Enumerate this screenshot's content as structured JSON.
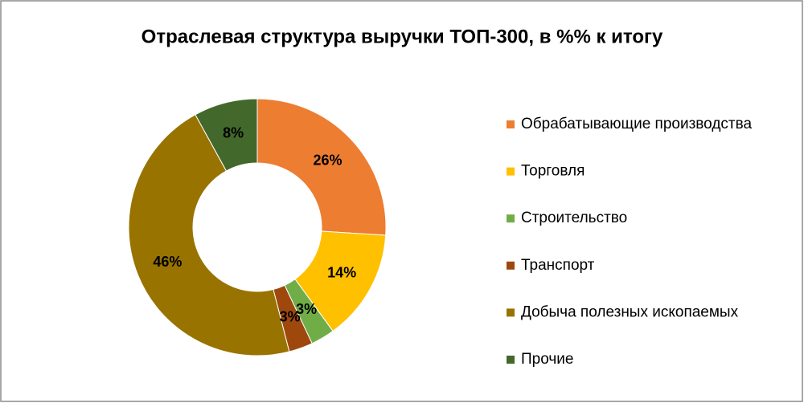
{
  "chart_data": {
    "type": "donut",
    "title": "Отраслевая структура выручки ТОП-300, в %% к итогу",
    "categories": [
      "Обрабатывающие производства",
      "Торговля",
      "Строительство",
      "Транспорт",
      "Добыча полезных ископаемых",
      "Прочие"
    ],
    "values": [
      26,
      14,
      3,
      3,
      46,
      8
    ],
    "value_labels": [
      "26%",
      "14%",
      "3%",
      "3%",
      "46%",
      "8%"
    ],
    "colors": [
      "#ed7d31",
      "#ffc000",
      "#70ad47",
      "#9e480e",
      "#997300",
      "#43682b"
    ],
    "legend": "right"
  }
}
